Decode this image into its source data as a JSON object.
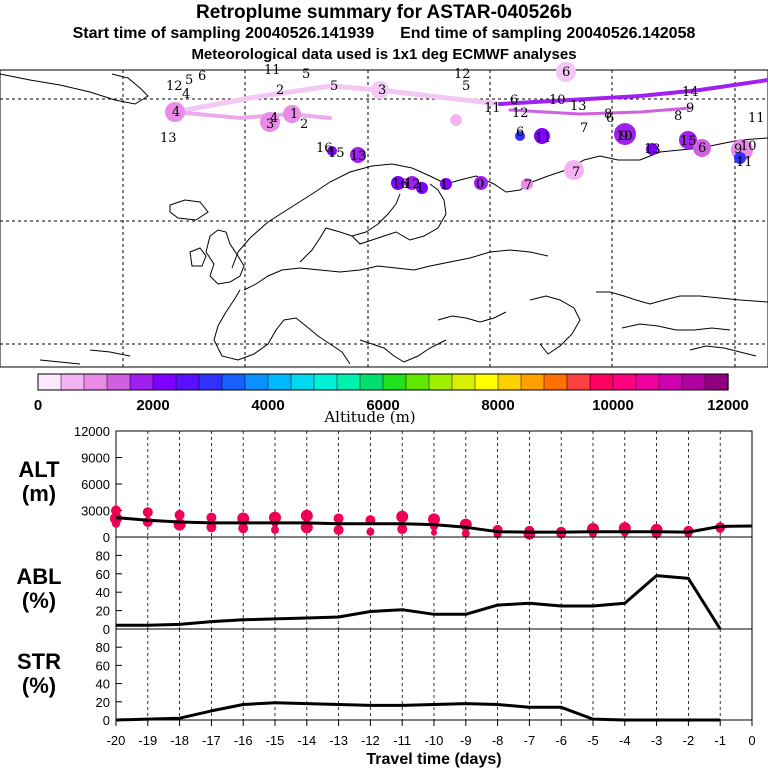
{
  "header": {
    "title": "Retroplume summary for ASTAR-040526b",
    "start_label": "Start time of sampling 20040526.141939",
    "end_label": "End time of sampling 20040526.142058",
    "met_label": "Meteorological data used is 1x1 deg ECMWF analyses"
  },
  "map": {
    "plume_labels": [
      {
        "text": "12",
        "alt": 900
      },
      {
        "text": "5",
        "alt": 700
      },
      {
        "text": "6",
        "alt": 700
      },
      {
        "text": "4",
        "alt": 900
      },
      {
        "text": "11",
        "alt": 800
      },
      {
        "text": "5",
        "alt": 700
      },
      {
        "text": "12",
        "alt": 800
      },
      {
        "text": "5",
        "alt": 700
      },
      {
        "text": "6",
        "alt": 700
      },
      {
        "text": "2",
        "alt": 600
      },
      {
        "text": "5",
        "alt": 600
      },
      {
        "text": "3",
        "alt": 600
      },
      {
        "text": "4",
        "alt": 1100
      },
      {
        "text": "13",
        "alt": 900
      },
      {
        "text": "3",
        "alt": 1000
      },
      {
        "text": "1",
        "alt": 1000
      },
      {
        "text": "2",
        "alt": 1000
      },
      {
        "text": "4",
        "alt": 900
      },
      {
        "text": "11",
        "alt": 1500
      },
      {
        "text": "6",
        "alt": 1500
      },
      {
        "text": "12",
        "alt": 1500
      },
      {
        "text": "10",
        "alt": 1500
      },
      {
        "text": "13",
        "alt": 1500
      },
      {
        "text": "14",
        "alt": 1700
      },
      {
        "text": "9",
        "alt": 1600
      },
      {
        "text": "8",
        "alt": 1400
      },
      {
        "text": "7",
        "alt": 1200
      },
      {
        "text": "6",
        "alt": 1000
      },
      {
        "text": "11",
        "alt": 1200
      },
      {
        "text": "6",
        "alt": 2800
      },
      {
        "text": "11",
        "alt": 2100
      },
      {
        "text": "7",
        "alt": 1200
      },
      {
        "text": "10",
        "alt": 2100
      },
      {
        "text": "16",
        "alt": 2400
      },
      {
        "text": "15",
        "alt": 2300
      },
      {
        "text": "13",
        "alt": 2300
      },
      {
        "text": "13",
        "alt": 2000
      },
      {
        "text": "15",
        "alt": 2100
      },
      {
        "text": "6",
        "alt": 1500
      },
      {
        "text": "9",
        "alt": 1600
      },
      {
        "text": "16",
        "alt": 2300
      },
      {
        "text": "12",
        "alt": 2400
      },
      {
        "text": "1",
        "alt": 2200
      },
      {
        "text": "1",
        "alt": 2200
      },
      {
        "text": "0",
        "alt": 2200
      },
      {
        "text": "7",
        "alt": 1200
      },
      {
        "text": "8",
        "alt": 1200
      },
      {
        "text": "9",
        "alt": 3000
      },
      {
        "text": "11",
        "alt": 2200
      },
      {
        "text": "10",
        "alt": 2200
      }
    ]
  },
  "colorbar": {
    "label": "Altitude (m)",
    "ticks": [
      "0",
      "2000",
      "4000",
      "6000",
      "8000",
      "10000",
      "12000"
    ],
    "colors": [
      "#ffe6ff",
      "#f4b4f4",
      "#e88ce8",
      "#d060e0",
      "#a020f0",
      "#7f00ff",
      "#5a10ff",
      "#3030ff",
      "#1860ff",
      "#0a90ff",
      "#00b8ff",
      "#00d8f0",
      "#00f0d8",
      "#00f0b0",
      "#00e070",
      "#20e020",
      "#60e800",
      "#a0f000",
      "#d8f000",
      "#ffff00",
      "#ffd000",
      "#ffa000",
      "#ff7000",
      "#ff4040",
      "#ff0060",
      "#ff0080",
      "#f000a0",
      "#d000b0",
      "#b000a0",
      "#900080"
    ]
  },
  "chart_data": [
    {
      "type": "scatter",
      "title": "ALT (m)",
      "ylim": [
        0,
        12000
      ],
      "yticks": [
        "0",
        "3000",
        "6000",
        "9000",
        "12000"
      ],
      "x": [
        -20,
        -19,
        -18,
        -17,
        -16,
        -15,
        -14,
        -13,
        -12,
        -11,
        -10,
        -9,
        -8,
        -7,
        -6,
        -5,
        -4,
        -3,
        -2,
        -1,
        0
      ],
      "series": [
        {
          "name": "mean altitude",
          "values": [
            2200,
            1900,
            1700,
            1600,
            1600,
            1600,
            1600,
            1500,
            1500,
            1500,
            1400,
            1100,
            600,
            550,
            550,
            600,
            600,
            600,
            550,
            1200,
            1250
          ]
        }
      ],
      "points": [
        {
          "x": -20,
          "y": 3000,
          "size": 5
        },
        {
          "x": -20,
          "y": 2100,
          "size": 6
        },
        {
          "x": -20,
          "y": 1500,
          "size": 4
        },
        {
          "x": -19,
          "y": 2800,
          "size": 5
        },
        {
          "x": -19,
          "y": 1700,
          "size": 5
        },
        {
          "x": -18,
          "y": 2500,
          "size": 5
        },
        {
          "x": -18,
          "y": 1400,
          "size": 6
        },
        {
          "x": -18,
          "y": 1900,
          "size": 3
        },
        {
          "x": -17,
          "y": 2200,
          "size": 5
        },
        {
          "x": -17,
          "y": 1100,
          "size": 5
        },
        {
          "x": -16,
          "y": 2100,
          "size": 6
        },
        {
          "x": -16,
          "y": 1000,
          "size": 5
        },
        {
          "x": -15,
          "y": 2200,
          "size": 6
        },
        {
          "x": -15,
          "y": 800,
          "size": 4
        },
        {
          "x": -15,
          "y": 1400,
          "size": 3
        },
        {
          "x": -14,
          "y": 2400,
          "size": 6
        },
        {
          "x": -14,
          "y": 1100,
          "size": 6
        },
        {
          "x": -13,
          "y": 2100,
          "size": 5
        },
        {
          "x": -13,
          "y": 800,
          "size": 5
        },
        {
          "x": -12,
          "y": 1900,
          "size": 5
        },
        {
          "x": -12,
          "y": 600,
          "size": 4
        },
        {
          "x": -11,
          "y": 2300,
          "size": 6
        },
        {
          "x": -11,
          "y": 900,
          "size": 5
        },
        {
          "x": -11,
          "y": 1400,
          "size": 3
        },
        {
          "x": -10,
          "y": 2000,
          "size": 6
        },
        {
          "x": -10,
          "y": 500,
          "size": 3
        },
        {
          "x": -10,
          "y": 1200,
          "size": 4
        },
        {
          "x": -9,
          "y": 1400,
          "size": 6
        },
        {
          "x": -9,
          "y": 400,
          "size": 4
        },
        {
          "x": -9,
          "y": 900,
          "size": 3
        },
        {
          "x": -8,
          "y": 800,
          "size": 5
        },
        {
          "x": -8,
          "y": 300,
          "size": 4
        },
        {
          "x": -7,
          "y": 700,
          "size": 5
        },
        {
          "x": -7,
          "y": 400,
          "size": 6
        },
        {
          "x": -6,
          "y": 600,
          "size": 5
        },
        {
          "x": -6,
          "y": 400,
          "size": 5
        },
        {
          "x": -5,
          "y": 900,
          "size": 6
        },
        {
          "x": -5,
          "y": 400,
          "size": 4
        },
        {
          "x": -4,
          "y": 1000,
          "size": 6
        },
        {
          "x": -4,
          "y": 500,
          "size": 4
        },
        {
          "x": -3,
          "y": 800,
          "size": 6
        },
        {
          "x": -3,
          "y": 400,
          "size": 5
        },
        {
          "x": -2,
          "y": 700,
          "size": 5
        },
        {
          "x": -2,
          "y": 400,
          "size": 4
        },
        {
          "x": -1,
          "y": 1100,
          "size": 5
        },
        {
          "x": -1,
          "y": 900,
          "size": 4
        }
      ]
    },
    {
      "type": "line",
      "title": "ABL (%)",
      "ylim": [
        0,
        100
      ],
      "yticks": [
        "0",
        "20",
        "40",
        "60",
        "80"
      ],
      "x": [
        -20,
        -19,
        -18,
        -17,
        -16,
        -15,
        -14,
        -13,
        -12,
        -11,
        -10,
        -9,
        -8,
        -7,
        -6,
        -5,
        -4,
        -3,
        -2,
        -1
      ],
      "series": [
        {
          "name": "ABL",
          "values": [
            4,
            4,
            5,
            8,
            10,
            11,
            12,
            13,
            19,
            21,
            16,
            16,
            26,
            28,
            25,
            25,
            28,
            58,
            55,
            0
          ]
        }
      ]
    },
    {
      "type": "line",
      "title": "STR (%)",
      "ylim": [
        0,
        100
      ],
      "yticks": [
        "0",
        "20",
        "40",
        "60",
        "80"
      ],
      "x": [
        -20,
        -19,
        -18,
        -17,
        -16,
        -15,
        -14,
        -13,
        -12,
        -11,
        -10,
        -9,
        -8,
        -7,
        -6,
        -5,
        -4,
        -3,
        -2,
        -1
      ],
      "series": [
        {
          "name": "STR",
          "values": [
            0,
            1,
            2,
            10,
            17,
            19,
            18,
            17,
            16,
            16,
            17,
            18,
            17,
            14,
            14,
            1,
            0,
            0,
            0,
            0
          ]
        }
      ],
      "xlabel": "Travel time (days)",
      "xticks": [
        "-20",
        "-19",
        "-18",
        "-17",
        "-16",
        "-15",
        "-14",
        "-13",
        "-12",
        "-11",
        "-10",
        "-9",
        "-8",
        "-7",
        "-6",
        "-5",
        "-4",
        "-3",
        "-2",
        "-1",
        "0"
      ]
    }
  ]
}
